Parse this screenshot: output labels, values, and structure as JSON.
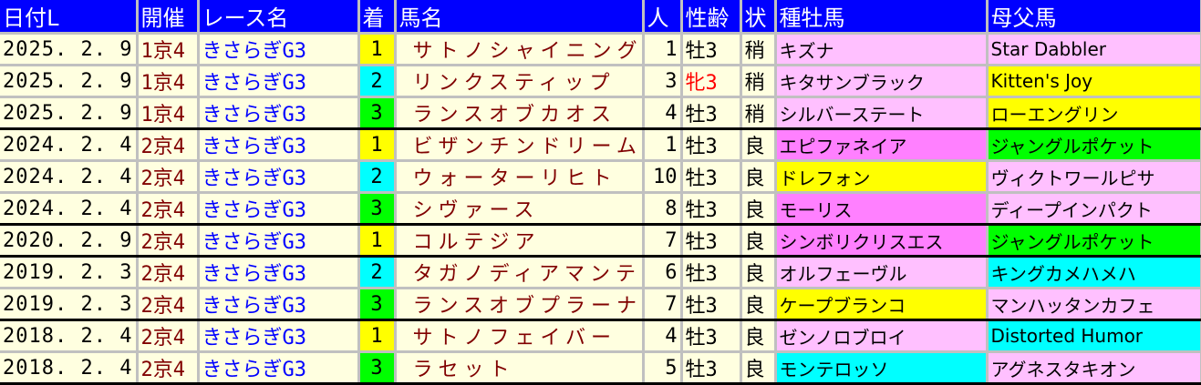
{
  "colors": {
    "header_bg": "#0000ff",
    "cell_bg": "#ffffe0",
    "rank1": "#ffff00",
    "rank2": "#00ffff",
    "rank3": "#00ff00",
    "pink": "#ffc0ff",
    "magenta": "#ff80ff",
    "yellow": "#ffff00",
    "cyan": "#00ffff",
    "green": "#00ff00"
  },
  "headers": [
    "日付L",
    "開催",
    "レース名",
    "着",
    "馬名",
    "人",
    "性齢",
    "状",
    "種牡馬",
    "母父馬"
  ],
  "rows": [
    {
      "date": "2025. 2. 9",
      "kaisai": "1京4",
      "race": "きさらぎG3",
      "rank": "1",
      "horse": "サトノシャイニング",
      "pop": "1",
      "sex": "牡3",
      "cond": "稍",
      "sire": "キズナ",
      "sire_bg": "#ffc0ff",
      "dam": "Star Dabbler",
      "dam_bg": "#ffc0ff",
      "sep": false
    },
    {
      "date": "2025. 2. 9",
      "kaisai": "1京4",
      "race": "きさらぎG3",
      "rank": "2",
      "horse": "リンクスティップ",
      "pop": "3",
      "sex": "牝3",
      "female": true,
      "cond": "稍",
      "sire": "キタサンブラック",
      "sire_bg": "#ffc0ff",
      "dam": "Kitten's Joy",
      "dam_bg": "#ffff00",
      "sep": false
    },
    {
      "date": "2025. 2. 9",
      "kaisai": "1京4",
      "race": "きさらぎG3",
      "rank": "3",
      "horse": "ランスオブカオス",
      "pop": "4",
      "sex": "牡3",
      "cond": "稍",
      "sire": "シルバーステート",
      "sire_bg": "#ffc0ff",
      "dam": "ローエングリン",
      "dam_bg": "#ffff00",
      "sep": true
    },
    {
      "date": "2024. 2. 4",
      "kaisai": "2京4",
      "race": "きさらぎG3",
      "rank": "1",
      "horse": "ビザンチンドリーム",
      "pop": "1",
      "sex": "牡3",
      "cond": "良",
      "sire": "エピファネイア",
      "sire_bg": "#ff80ff",
      "dam": "ジャングルポケット",
      "dam_bg": "#00ff00",
      "sep": false
    },
    {
      "date": "2024. 2. 4",
      "kaisai": "2京4",
      "race": "きさらぎG3",
      "rank": "2",
      "horse": "ウォーターリヒト",
      "pop": "10",
      "sex": "牡3",
      "cond": "良",
      "sire": "ドレフォン",
      "sire_bg": "#ffff00",
      "dam": "ヴィクトワールピサ",
      "dam_bg": "#ffc0ff",
      "sep": false
    },
    {
      "date": "2024. 2. 4",
      "kaisai": "2京4",
      "race": "きさらぎG3",
      "rank": "3",
      "horse": "シヴァース",
      "pop": "8",
      "sex": "牡3",
      "cond": "良",
      "sire": "モーリス",
      "sire_bg": "#ff80ff",
      "dam": "ディープインパクト",
      "dam_bg": "#ffc0ff",
      "sep": true
    },
    {
      "date": "2020. 2. 9",
      "kaisai": "2京4",
      "race": "きさらぎG3",
      "rank": "1",
      "horse": "コルテジア",
      "pop": "7",
      "sex": "牡3",
      "cond": "良",
      "sire": "シンボリクリスエス",
      "sire_bg": "#ff80ff",
      "dam": "ジャングルポケット",
      "dam_bg": "#00ff00",
      "sep": true
    },
    {
      "date": "2019. 2. 3",
      "kaisai": "2京4",
      "race": "きさらぎG3",
      "rank": "2",
      "horse": "タガノディアマンテ",
      "pop": "6",
      "sex": "牡3",
      "cond": "良",
      "sire": "オルフェーヴル",
      "sire_bg": "#ffc0ff",
      "dam": "キングカメハメハ",
      "dam_bg": "#00ffff",
      "sep": false
    },
    {
      "date": "2019. 2. 3",
      "kaisai": "2京4",
      "race": "きさらぎG3",
      "rank": "3",
      "horse": "ランスオブプラーナ",
      "pop": "7",
      "sex": "牡3",
      "cond": "良",
      "sire": "ケープブランコ",
      "sire_bg": "#ffff00",
      "dam": "マンハッタンカフェ",
      "dam_bg": "#ffc0ff",
      "sep": true
    },
    {
      "date": "2018. 2. 4",
      "kaisai": "2京4",
      "race": "きさらぎG3",
      "rank": "1",
      "horse": "サトノフェイバー",
      "pop": "4",
      "sex": "牡3",
      "cond": "良",
      "sire": "ゼンノロブロイ",
      "sire_bg": "#ffc0ff",
      "dam": "Distorted Humor",
      "dam_bg": "#00ffff",
      "sep": false
    },
    {
      "date": "2018. 2. 4",
      "kaisai": "2京4",
      "race": "きさらぎG3",
      "rank": "3",
      "horse": "ラセット",
      "pop": "5",
      "sex": "牡3",
      "cond": "良",
      "sire": "モンテロッソ",
      "sire_bg": "#00ffff",
      "dam": "アグネスタキオン",
      "dam_bg": "#ffc0ff",
      "sep": true
    }
  ]
}
